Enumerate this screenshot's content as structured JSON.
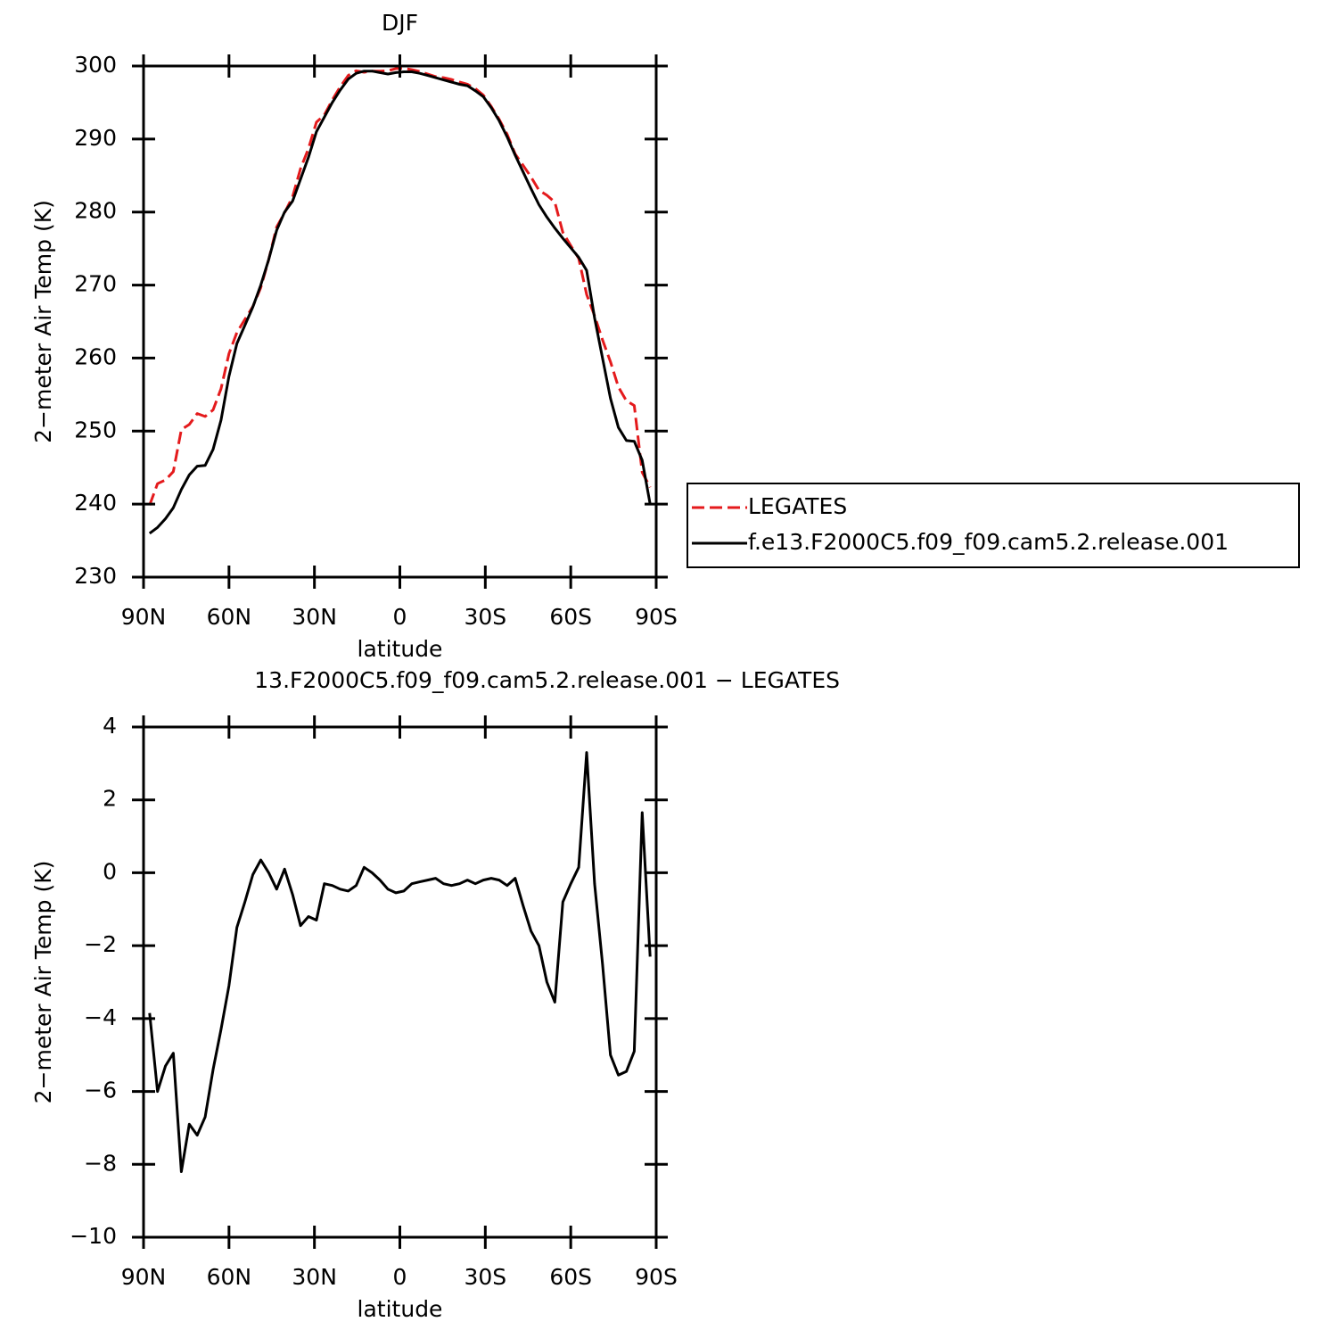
{
  "chart_data": [
    {
      "type": "line",
      "title": "DJF",
      "xlabel": "latitude",
      "ylabel": "2−meter Air Temp (K)",
      "legend": "right",
      "x": [
        87.86,
        85.1,
        82.31,
        79.53,
        76.74,
        73.95,
        71.16,
        68.37,
        65.58,
        62.79,
        60.0,
        57.21,
        54.42,
        51.63,
        48.84,
        46.05,
        43.26,
        40.47,
        37.67,
        34.88,
        32.09,
        29.3,
        26.51,
        23.72,
        20.93,
        18.14,
        15.35,
        12.56,
        9.77,
        6.98,
        4.19,
        1.4,
        -1.4,
        -4.19,
        -6.98,
        -9.77,
        -12.56,
        -15.35,
        -18.14,
        -20.93,
        -23.72,
        -26.51,
        -29.3,
        -32.09,
        -34.88,
        -37.67,
        -40.47,
        -43.26,
        -46.05,
        -48.84,
        -51.63,
        -54.42,
        -57.21,
        -60.0,
        -62.79,
        -65.58,
        -68.37,
        -71.16,
        -73.95,
        -76.74,
        -79.53,
        -82.31,
        -85.1,
        -87.86
      ],
      "series": [
        {
          "name": "LEGATES",
          "color": "#e41a1c",
          "dash": true,
          "values": [
            239.85,
            242.8,
            243.3,
            244.45,
            250.2,
            250.9,
            252.4,
            252.0,
            252.9,
            255.8,
            260.6,
            263.5,
            265.3,
            267.05,
            269.65,
            273.5,
            277.95,
            279.9,
            282.1,
            285.95,
            288.7,
            292.3,
            293.3,
            295.35,
            297.15,
            298.7,
            299.35,
            299.15,
            299.3,
            299.3,
            299.35,
            299.65,
            299.7,
            299.5,
            299.25,
            298.9,
            298.55,
            298.4,
            298.15,
            297.8,
            297.5,
            296.9,
            296.0,
            294.45,
            292.7,
            290.65,
            287.95,
            286.4,
            284.8,
            283.0,
            282.3,
            281.35,
            277.2,
            275.4,
            273.65,
            268.7,
            265.8,
            262.5,
            259.5,
            256.05,
            254.15,
            253.5,
            244.35,
            242.3
          ]
        },
        {
          "name": "f.e13.F2000C5.f09_f09.cam5.2.release.001",
          "color": "#000000",
          "dash": false,
          "values": [
            236.0,
            236.8,
            238.0,
            239.5,
            242.0,
            244.0,
            245.2,
            245.3,
            247.5,
            251.5,
            257.5,
            262.0,
            264.5,
            267.0,
            270.0,
            273.5,
            277.5,
            280.0,
            281.5,
            284.5,
            287.5,
            291.0,
            293.0,
            295.0,
            296.7,
            298.2,
            299.0,
            299.3,
            299.3,
            299.1,
            298.9,
            299.1,
            299.2,
            299.2,
            299.0,
            298.7,
            298.4,
            298.1,
            297.8,
            297.5,
            297.3,
            296.6,
            295.8,
            294.3,
            292.5,
            290.3,
            287.8,
            285.5,
            283.2,
            281.0,
            279.3,
            277.8,
            276.4,
            275.1,
            273.8,
            272.0,
            265.5,
            260.0,
            254.5,
            250.5,
            248.7,
            248.6,
            246.0,
            240.0
          ]
        }
      ],
      "xlim": [
        90,
        -90
      ],
      "xticks": [
        {
          "value": 90,
          "label": "90N"
        },
        {
          "value": 60,
          "label": "60N"
        },
        {
          "value": 30,
          "label": "30N"
        },
        0,
        {
          "value": -30,
          "label": "30S"
        },
        {
          "value": -60,
          "label": "60S"
        },
        {
          "value": -90,
          "label": "90S"
        }
      ],
      "ylim": [
        230,
        300
      ],
      "yticks": [
        230,
        240,
        250,
        260,
        270,
        280,
        290,
        300
      ]
    },
    {
      "type": "line",
      "title": "13.F2000C5.f09_f09.cam5.2.release.001 − LEGATES",
      "xlabel": "latitude",
      "ylabel": "2−meter Air Temp (K)",
      "x": [
        87.86,
        85.1,
        82.31,
        79.53,
        76.74,
        73.95,
        71.16,
        68.37,
        65.58,
        62.79,
        60.0,
        57.21,
        54.42,
        51.63,
        48.84,
        46.05,
        43.26,
        40.47,
        37.67,
        34.88,
        32.09,
        29.3,
        26.51,
        23.72,
        20.93,
        18.14,
        15.35,
        12.56,
        9.77,
        6.98,
        4.19,
        1.4,
        -1.4,
        -4.19,
        -6.98,
        -9.77,
        -12.56,
        -15.35,
        -18.14,
        -20.93,
        -23.72,
        -26.51,
        -29.3,
        -32.09,
        -34.88,
        -37.67,
        -40.47,
        -43.26,
        -46.05,
        -48.84,
        -51.63,
        -54.42,
        -57.21,
        -60.0,
        -62.79,
        -65.58,
        -68.37,
        -71.16,
        -73.95,
        -76.74,
        -79.53,
        -82.31,
        -85.1,
        -87.86
      ],
      "series": [
        {
          "color": "#000000",
          "dash": false,
          "values": [
            -3.85,
            -6.0,
            -5.3,
            -4.95,
            -8.2,
            -6.9,
            -7.2,
            -6.7,
            -5.4,
            -4.3,
            -3.1,
            -1.5,
            -0.8,
            -0.05,
            0.35,
            0.0,
            -0.45,
            0.1,
            -0.6,
            -1.45,
            -1.2,
            -1.3,
            -0.3,
            -0.35,
            -0.45,
            -0.5,
            -0.35,
            0.15,
            0.0,
            -0.2,
            -0.45,
            -0.55,
            -0.5,
            -0.3,
            -0.25,
            -0.2,
            -0.15,
            -0.3,
            -0.35,
            -0.3,
            -0.2,
            -0.3,
            -0.2,
            -0.15,
            -0.2,
            -0.35,
            -0.15,
            -0.9,
            -1.6,
            -2.0,
            -3.0,
            -3.55,
            -0.8,
            -0.3,
            0.15,
            3.3,
            -0.3,
            -2.5,
            -5.0,
            -5.55,
            -5.45,
            -4.9,
            1.65,
            -2.3
          ]
        }
      ],
      "xlim": [
        90,
        -90
      ],
      "xticks": [
        {
          "value": 90,
          "label": "90N"
        },
        {
          "value": 60,
          "label": "60N"
        },
        {
          "value": 30,
          "label": "30N"
        },
        0,
        {
          "value": -30,
          "label": "30S"
        },
        {
          "value": -60,
          "label": "60S"
        },
        {
          "value": -90,
          "label": "90S"
        }
      ],
      "ylim": [
        -10,
        4
      ],
      "yticks": [
        {
          "value": -10,
          "label": "−10"
        },
        {
          "value": -8,
          "label": "−8"
        },
        {
          "value": -6,
          "label": "−6"
        },
        {
          "value": -4,
          "label": "−4"
        },
        {
          "value": -2,
          "label": "−2"
        },
        0,
        2,
        4
      ]
    }
  ]
}
